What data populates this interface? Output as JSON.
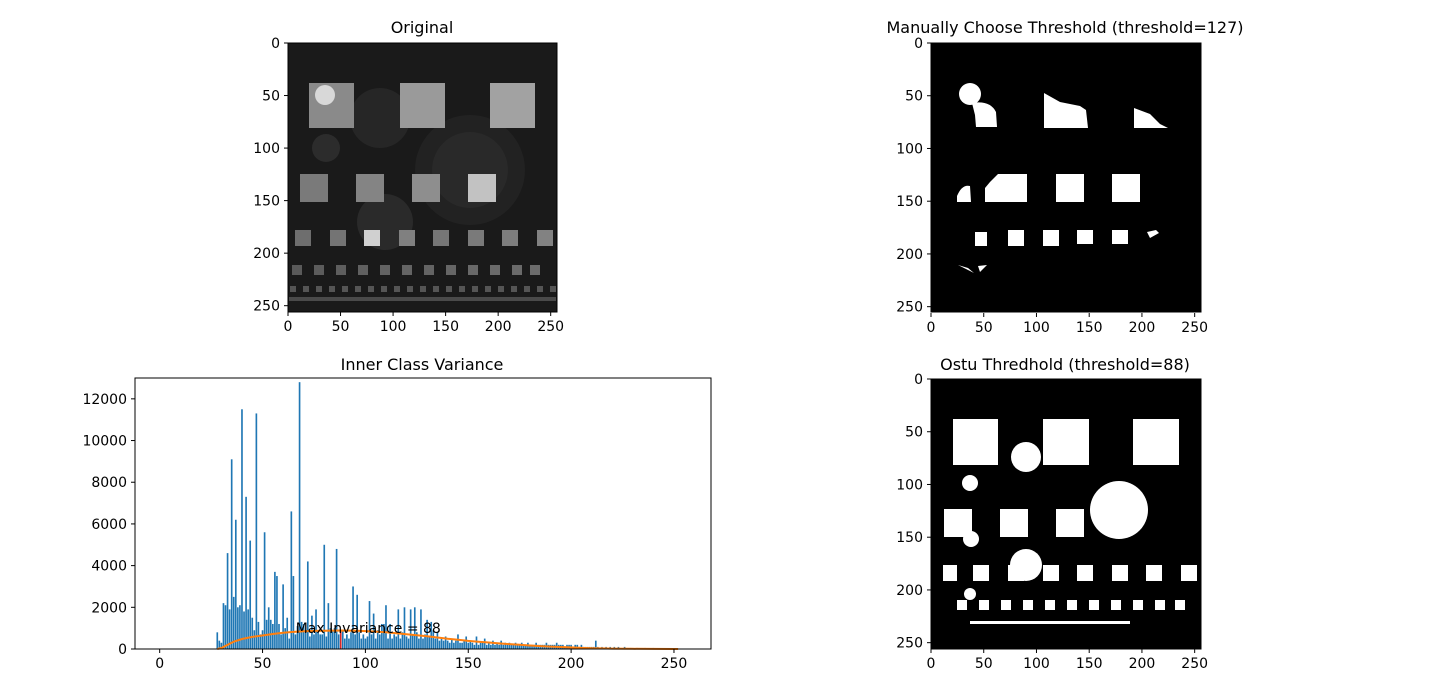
{
  "figure": {
    "background": "#ffffff"
  },
  "panels": {
    "original": {
      "title": "Original",
      "xticks": [
        "0",
        "50",
        "100",
        "150",
        "200",
        "250"
      ],
      "yticks": [
        "0",
        "50",
        "100",
        "150",
        "200",
        "250"
      ]
    },
    "manual": {
      "title": "Manually Choose Threshold (threshold=127)",
      "xticks": [
        "0",
        "50",
        "100",
        "150",
        "200",
        "250"
      ],
      "yticks": [
        "0",
        "50",
        "100",
        "150",
        "200",
        "250"
      ]
    },
    "otsu": {
      "title": "Ostu Thredhold (threshold=88)",
      "xticks": [
        "0",
        "50",
        "100",
        "150",
        "200",
        "250"
      ],
      "yticks": [
        "0",
        "50",
        "100",
        "150",
        "200",
        "250"
      ]
    }
  },
  "chart_data": [
    {
      "type": "bar",
      "title": "Inner Class Variance",
      "xlim": [
        -12,
        268
      ],
      "ylim": [
        0,
        13000
      ],
      "xticks": [
        0,
        50,
        100,
        150,
        200,
        250
      ],
      "yticks": [
        0,
        2000,
        4000,
        6000,
        8000,
        10000,
        12000
      ],
      "annotation": "Max Invariance = 88",
      "annotation_x": 88,
      "bar_color": "#1f77b4",
      "line_color": "#ff7f0e",
      "highlight_color": "#d62728",
      "highlight_bin": 88,
      "highlight_value": 900,
      "bars": [
        [
          28,
          800
        ],
        [
          29,
          400
        ],
        [
          30,
          300
        ],
        [
          31,
          2200
        ],
        [
          32,
          2100
        ],
        [
          33,
          4600
        ],
        [
          34,
          1900
        ],
        [
          35,
          9100
        ],
        [
          36,
          2500
        ],
        [
          37,
          6200
        ],
        [
          38,
          2000
        ],
        [
          39,
          2100
        ],
        [
          40,
          11500
        ],
        [
          41,
          1800
        ],
        [
          42,
          7300
        ],
        [
          43,
          1900
        ],
        [
          44,
          5200
        ],
        [
          45,
          1500
        ],
        [
          46,
          900
        ],
        [
          47,
          11300
        ],
        [
          48,
          1300
        ],
        [
          49,
          700
        ],
        [
          50,
          900
        ],
        [
          51,
          5600
        ],
        [
          52,
          1400
        ],
        [
          53,
          2000
        ],
        [
          54,
          1400
        ],
        [
          55,
          1200
        ],
        [
          56,
          3700
        ],
        [
          57,
          3500
        ],
        [
          58,
          1200
        ],
        [
          59,
          700
        ],
        [
          60,
          3100
        ],
        [
          61,
          1000
        ],
        [
          62,
          1500
        ],
        [
          63,
          500
        ],
        [
          64,
          6600
        ],
        [
          65,
          3500
        ],
        [
          66,
          700
        ],
        [
          67,
          1100
        ],
        [
          68,
          12800
        ],
        [
          69,
          1300
        ],
        [
          70,
          1200
        ],
        [
          71,
          900
        ],
        [
          72,
          4200
        ],
        [
          73,
          600
        ],
        [
          74,
          1600
        ],
        [
          75,
          700
        ],
        [
          76,
          1900
        ],
        [
          77,
          800
        ],
        [
          78,
          700
        ],
        [
          79,
          700
        ],
        [
          80,
          5000
        ],
        [
          81,
          600
        ],
        [
          82,
          2200
        ],
        [
          83,
          1000
        ],
        [
          84,
          900
        ],
        [
          85,
          1000
        ],
        [
          86,
          4800
        ],
        [
          87,
          700
        ],
        [
          89,
          900
        ],
        [
          90,
          500
        ],
        [
          91,
          700
        ],
        [
          92,
          500
        ],
        [
          93,
          800
        ],
        [
          94,
          3000
        ],
        [
          95,
          700
        ],
        [
          96,
          2600
        ],
        [
          97,
          800
        ],
        [
          98,
          500
        ],
        [
          99,
          700
        ],
        [
          100,
          500
        ],
        [
          101,
          600
        ],
        [
          102,
          2300
        ],
        [
          103,
          700
        ],
        [
          104,
          1700
        ],
        [
          105,
          500
        ],
        [
          106,
          900
        ],
        [
          107,
          700
        ],
        [
          108,
          1200
        ],
        [
          109,
          1200
        ],
        [
          110,
          2100
        ],
        [
          111,
          500
        ],
        [
          112,
          1200
        ],
        [
          113,
          500
        ],
        [
          114,
          700
        ],
        [
          115,
          600
        ],
        [
          116,
          1900
        ],
        [
          117,
          500
        ],
        [
          118,
          800
        ],
        [
          119,
          2000
        ],
        [
          120,
          600
        ],
        [
          121,
          500
        ],
        [
          122,
          1900
        ],
        [
          123,
          700
        ],
        [
          124,
          2000
        ],
        [
          125,
          800
        ],
        [
          126,
          500
        ],
        [
          127,
          1900
        ],
        [
          128,
          500
        ],
        [
          129,
          700
        ],
        [
          130,
          1400
        ],
        [
          131,
          600
        ],
        [
          132,
          1300
        ],
        [
          133,
          900
        ],
        [
          134,
          500
        ],
        [
          135,
          800
        ],
        [
          136,
          400
        ],
        [
          137,
          500
        ],
        [
          138,
          400
        ],
        [
          139,
          600
        ],
        [
          140,
          400
        ],
        [
          141,
          300
        ],
        [
          142,
          500
        ],
        [
          143,
          300
        ],
        [
          144,
          400
        ],
        [
          145,
          700
        ],
        [
          146,
          300
        ],
        [
          147,
          300
        ],
        [
          148,
          400
        ],
        [
          149,
          600
        ],
        [
          150,
          300
        ],
        [
          151,
          400
        ],
        [
          152,
          300
        ],
        [
          153,
          200
        ],
        [
          154,
          600
        ],
        [
          155,
          200
        ],
        [
          156,
          300
        ],
        [
          157,
          300
        ],
        [
          158,
          500
        ],
        [
          159,
          200
        ],
        [
          160,
          300
        ],
        [
          161,
          200
        ],
        [
          162,
          400
        ],
        [
          163,
          200
        ],
        [
          164,
          300
        ],
        [
          165,
          200
        ],
        [
          166,
          400
        ],
        [
          167,
          200
        ],
        [
          168,
          300
        ],
        [
          169,
          200
        ],
        [
          170,
          300
        ],
        [
          171,
          200
        ],
        [
          172,
          200
        ],
        [
          173,
          300
        ],
        [
          174,
          200
        ],
        [
          175,
          200
        ],
        [
          176,
          300
        ],
        [
          177,
          200
        ],
        [
          178,
          200
        ],
        [
          179,
          300
        ],
        [
          180,
          200
        ],
        [
          181,
          200
        ],
        [
          182,
          200
        ],
        [
          183,
          300
        ],
        [
          184,
          200
        ],
        [
          185,
          200
        ],
        [
          186,
          200
        ],
        [
          187,
          200
        ],
        [
          188,
          300
        ],
        [
          189,
          200
        ],
        [
          190,
          200
        ],
        [
          191,
          200
        ],
        [
          192,
          200
        ],
        [
          193,
          300
        ],
        [
          194,
          200
        ],
        [
          195,
          200
        ],
        [
          196,
          200
        ],
        [
          197,
          100
        ],
        [
          198,
          200
        ],
        [
          199,
          200
        ],
        [
          200,
          200
        ],
        [
          201,
          100
        ],
        [
          202,
          200
        ],
        [
          203,
          200
        ],
        [
          204,
          100
        ],
        [
          205,
          200
        ],
        [
          206,
          100
        ],
        [
          207,
          100
        ],
        [
          208,
          100
        ],
        [
          209,
          100
        ],
        [
          210,
          100
        ],
        [
          211,
          100
        ],
        [
          212,
          400
        ],
        [
          213,
          100
        ],
        [
          215,
          100
        ],
        [
          217,
          100
        ],
        [
          219,
          100
        ],
        [
          221,
          100
        ],
        [
          223,
          100
        ],
        [
          226,
          100
        ],
        [
          229,
          50
        ],
        [
          232,
          50
        ],
        [
          236,
          50
        ],
        [
          240,
          50
        ]
      ],
      "curve": [
        [
          28,
          0
        ],
        [
          30,
          50
        ],
        [
          33,
          200
        ],
        [
          36,
          350
        ],
        [
          40,
          480
        ],
        [
          45,
          580
        ],
        [
          50,
          650
        ],
        [
          55,
          720
        ],
        [
          60,
          780
        ],
        [
          65,
          820
        ],
        [
          70,
          850
        ],
        [
          75,
          870
        ],
        [
          80,
          880
        ],
        [
          85,
          885
        ],
        [
          88,
          887
        ],
        [
          92,
          883
        ],
        [
          96,
          875
        ],
        [
          100,
          860
        ],
        [
          105,
          835
        ],
        [
          110,
          800
        ],
        [
          115,
          760
        ],
        [
          120,
          710
        ],
        [
          125,
          660
        ],
        [
          130,
          610
        ],
        [
          135,
          550
        ],
        [
          140,
          490
        ],
        [
          145,
          440
        ],
        [
          150,
          390
        ],
        [
          155,
          350
        ],
        [
          160,
          310
        ],
        [
          165,
          270
        ],
        [
          170,
          235
        ],
        [
          175,
          200
        ],
        [
          180,
          170
        ],
        [
          185,
          140
        ],
        [
          190,
          115
        ],
        [
          195,
          95
        ],
        [
          200,
          75
        ],
        [
          205,
          55
        ],
        [
          210,
          40
        ],
        [
          215,
          28
        ],
        [
          220,
          18
        ],
        [
          230,
          8
        ],
        [
          240,
          3
        ],
        [
          250,
          1
        ],
        [
          252,
          0
        ]
      ]
    }
  ]
}
